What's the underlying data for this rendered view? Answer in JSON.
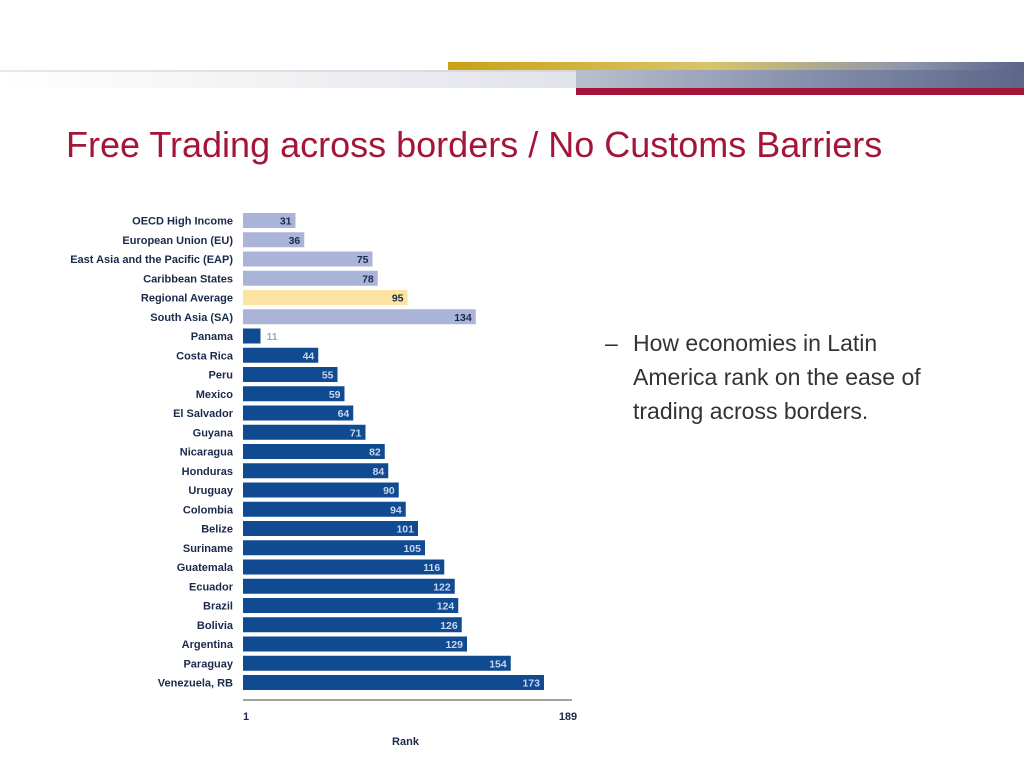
{
  "slide": {
    "title": "Free Trading across borders / No Customs Barriers",
    "bullet": {
      "marker": "–",
      "text": "How economies in Latin America rank on the ease of trading across borders."
    }
  },
  "colors": {
    "title": "#a3163a",
    "bar_aggregate": "#a9b4d8",
    "bar_regional_average": "#fde3a2",
    "bar_country": "#104a90"
  },
  "chart_data": {
    "type": "bar",
    "orientation": "horizontal",
    "xlabel": "Rank",
    "xlim": [
      1,
      189
    ],
    "x_ticks": [
      "1",
      "189"
    ],
    "categories": [
      "OECD High Income",
      "European Union (EU)",
      "East Asia and the Pacific (EAP)",
      "Caribbean States",
      "Regional Average",
      "South Asia (SA)",
      "Panama",
      "Costa Rica",
      "Peru",
      "Mexico",
      "El Salvador",
      "Guyana",
      "Nicaragua",
      "Honduras",
      "Uruguay",
      "Colombia",
      "Belize",
      "Suriname",
      "Guatemala",
      "Ecuador",
      "Brazil",
      "Bolivia",
      "Argentina",
      "Paraguay",
      "Venezuela, RB"
    ],
    "values": [
      31,
      36,
      75,
      78,
      95,
      134,
      11,
      44,
      55,
      59,
      64,
      71,
      82,
      84,
      90,
      94,
      101,
      105,
      116,
      122,
      124,
      126,
      129,
      154,
      173
    ],
    "bar_kind": [
      "aggregate",
      "aggregate",
      "aggregate",
      "aggregate",
      "regional_average",
      "aggregate",
      "country",
      "country",
      "country",
      "country",
      "country",
      "country",
      "country",
      "country",
      "country",
      "country",
      "country",
      "country",
      "country",
      "country",
      "country",
      "country",
      "country",
      "country",
      "country"
    ],
    "grid": false,
    "legend": "none"
  }
}
